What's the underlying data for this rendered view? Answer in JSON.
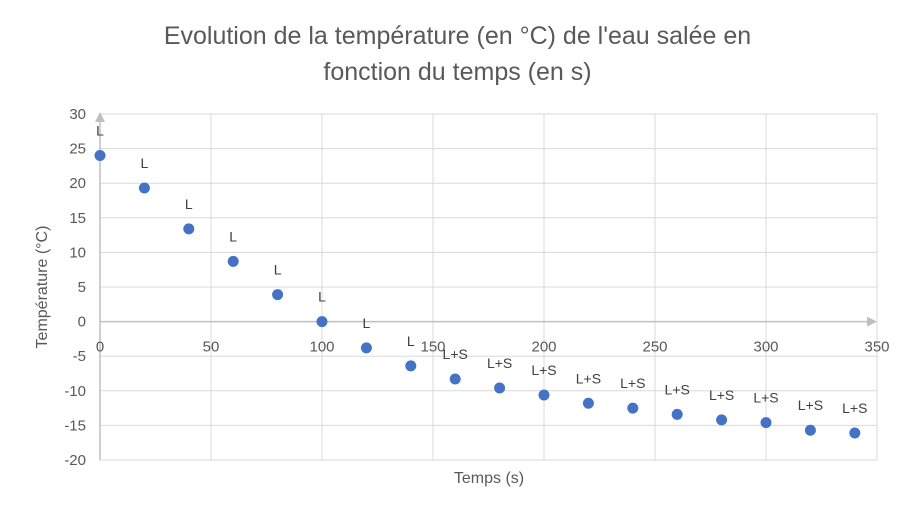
{
  "chart_data": {
    "type": "scatter",
    "title_lines": [
      "Evolution de la température (en °C) de l'eau salée en",
      "fonction du temps (en s)"
    ],
    "xlabel": "Temps (s)",
    "ylabel": "Température (°C)",
    "xlim": [
      0,
      350
    ],
    "ylim": [
      -20,
      30
    ],
    "x_ticks": [
      0,
      50,
      100,
      150,
      200,
      250,
      300,
      350
    ],
    "y_ticks": [
      -20,
      -15,
      -10,
      -5,
      0,
      5,
      10,
      15,
      20,
      25,
      30
    ],
    "grid": true,
    "legend": "none",
    "point_color": "#4472C4",
    "points": [
      {
        "x": 0,
        "y": 24,
        "label": "L"
      },
      {
        "x": 20,
        "y": 19.3,
        "label": "L"
      },
      {
        "x": 40,
        "y": 13.4,
        "label": "L"
      },
      {
        "x": 60,
        "y": 8.7,
        "label": "L"
      },
      {
        "x": 80,
        "y": 3.9,
        "label": "L"
      },
      {
        "x": 100,
        "y": 0,
        "label": "L"
      },
      {
        "x": 120,
        "y": -3.8,
        "label": "L"
      },
      {
        "x": 140,
        "y": -6.4,
        "label": "L"
      },
      {
        "x": 160,
        "y": -8.3,
        "label": "L+S"
      },
      {
        "x": 180,
        "y": -9.6,
        "label": "L+S"
      },
      {
        "x": 200,
        "y": -10.6,
        "label": "L+S"
      },
      {
        "x": 220,
        "y": -11.8,
        "label": "L+S"
      },
      {
        "x": 240,
        "y": -12.5,
        "label": "L+S"
      },
      {
        "x": 260,
        "y": -13.4,
        "label": "L+S"
      },
      {
        "x": 280,
        "y": -14.2,
        "label": "L+S"
      },
      {
        "x": 300,
        "y": -14.6,
        "label": "L+S"
      },
      {
        "x": 320,
        "y": -15.7,
        "label": "L+S"
      },
      {
        "x": 340,
        "y": -16.1,
        "label": "L+S"
      }
    ]
  }
}
